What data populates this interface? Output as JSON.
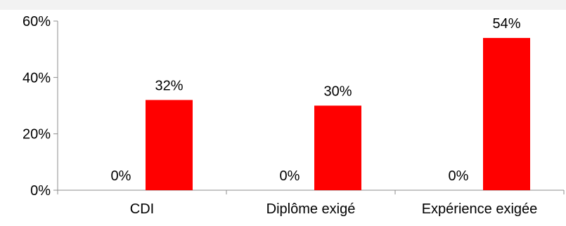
{
  "chart_data": {
    "type": "bar",
    "title": "",
    "xlabel": "",
    "ylabel": "",
    "categories": [
      "CDI",
      "Diplôme exigé",
      "Expérience exigée"
    ],
    "series": [
      {
        "values": [
          0,
          0,
          0
        ],
        "labels": [
          "0%",
          "0%",
          "0%"
        ],
        "color": "#ff0000"
      },
      {
        "values": [
          32,
          30,
          54
        ],
        "labels": [
          "32%",
          "30%",
          "54%"
        ],
        "color": "#ff0000"
      }
    ],
    "ylim": [
      0,
      60
    ],
    "yticks": [
      {
        "value": 0,
        "label": "0%"
      },
      {
        "value": 20,
        "label": "20%"
      },
      {
        "value": 40,
        "label": "40%"
      },
      {
        "value": 60,
        "label": "60%"
      }
    ],
    "grid": false,
    "legend": "none"
  }
}
